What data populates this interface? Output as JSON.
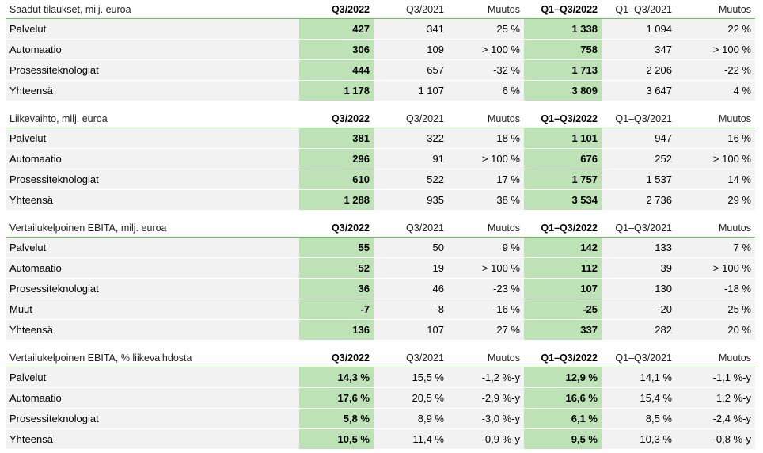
{
  "columns": [
    "Q3/2022",
    "Q3/2021",
    "Muutos",
    "Q1–Q3/2022",
    "Q1–Q3/2021",
    "Muutos"
  ],
  "tables": [
    {
      "title": "Saadut tilaukset, milj. euroa",
      "rows": [
        {
          "label": "Palvelut",
          "values": [
            "427",
            "341",
            "25 %",
            "1 338",
            "1 094",
            "22 %"
          ]
        },
        {
          "label": "Automaatio",
          "values": [
            "306",
            "109",
            "> 100 %",
            "758",
            "347",
            "> 100 %"
          ]
        },
        {
          "label": "Prosessiteknologiat",
          "values": [
            "444",
            "657",
            "-32 %",
            "1 713",
            "2 206",
            "-22 %"
          ]
        },
        {
          "label": "Yhteensä",
          "values": [
            "1 178",
            "1 107",
            "6 %",
            "3 809",
            "3 647",
            "4 %"
          ]
        }
      ]
    },
    {
      "title": "Liikevaihto, milj. euroa",
      "rows": [
        {
          "label": "Palvelut",
          "values": [
            "381",
            "322",
            "18 %",
            "1 101",
            "947",
            "16 %"
          ]
        },
        {
          "label": "Automaatio",
          "values": [
            "296",
            "91",
            "> 100 %",
            "676",
            "252",
            "> 100 %"
          ]
        },
        {
          "label": "Prosessiteknologiat",
          "values": [
            "610",
            "522",
            "17 %",
            "1 757",
            "1 537",
            "14 %"
          ]
        },
        {
          "label": "Yhteensä",
          "values": [
            "1 288",
            "935",
            "38 %",
            "3 534",
            "2 736",
            "29 %"
          ]
        }
      ]
    },
    {
      "title": "Vertailukelpoinen EBITA, milj. euroa",
      "rows": [
        {
          "label": "Palvelut",
          "values": [
            "55",
            "50",
            "9 %",
            "142",
            "133",
            "7 %"
          ]
        },
        {
          "label": "Automaatio",
          "values": [
            "52",
            "19",
            "> 100 %",
            "112",
            "39",
            "> 100 %"
          ]
        },
        {
          "label": "Prosessiteknologiat",
          "values": [
            "36",
            "46",
            "-23 %",
            "107",
            "130",
            "-18 %"
          ]
        },
        {
          "label": "Muut",
          "values": [
            "-7",
            "-8",
            "-16 %",
            "-25",
            "-20",
            "25 %"
          ]
        },
        {
          "label": "Yhteensä",
          "values": [
            "136",
            "107",
            "27 %",
            "337",
            "282",
            "20 %"
          ]
        }
      ]
    },
    {
      "title": "Vertailukelpoinen EBITA, % liikevaihdosta",
      "rows": [
        {
          "label": "Palvelut",
          "values": [
            "14,3 %",
            "15,5 %",
            "-1,2 %-y",
            "12,9 %",
            "14,1 %",
            "-1,1 %-y"
          ]
        },
        {
          "label": "Automaatio",
          "values": [
            "17,6 %",
            "20,5 %",
            "-2,9 %-y",
            "16,6 %",
            "15,4 %",
            "1,2 %-y"
          ]
        },
        {
          "label": "Prosessiteknologiat",
          "values": [
            "5,8 %",
            "8,9 %",
            "-3,0 %-y",
            "6,1 %",
            "8,5 %",
            "-2,4 %-y"
          ]
        },
        {
          "label": "Yhteensä",
          "values": [
            "10,5 %",
            "11,4 %",
            "-0,9 %-y",
            "9,5 %",
            "10,3 %",
            "-0,8 %-y"
          ]
        }
      ]
    }
  ]
}
